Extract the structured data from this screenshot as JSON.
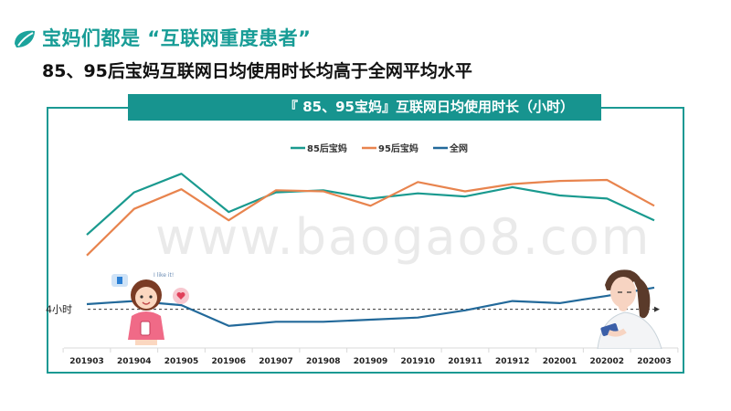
{
  "header": {
    "title": "宝妈们都是 “互联网重度患者”",
    "subtitle": "85、95后宝妈互联网日均使用时长均高于全网平均水平"
  },
  "watermark": "www.baogao8.com",
  "colors": {
    "brand": "#179c96",
    "title_bar": "#17948f"
  },
  "chart_data": {
    "type": "line",
    "title": "『 85、95宝妈』互联网日均使用时长（小时）",
    "categories": [
      "201903",
      "201904",
      "201905",
      "201906",
      "201907",
      "201908",
      "201909",
      "201910",
      "201911",
      "201912",
      "202001",
      "202002",
      "202003"
    ],
    "series": [
      {
        "name": "85后宝妈",
        "color": "#1a9a8f",
        "values": [
          4.72,
          5.13,
          5.31,
          4.94,
          5.13,
          5.15,
          5.07,
          5.12,
          5.09,
          5.18,
          5.1,
          5.07,
          4.86
        ]
      },
      {
        "name": "95后宝妈",
        "color": "#e8844e",
        "values": [
          4.52,
          4.97,
          5.16,
          4.86,
          5.15,
          5.14,
          5.0,
          5.23,
          5.14,
          5.21,
          5.24,
          5.25,
          5.0
        ]
      },
      {
        "name": "全网",
        "color": "#22699a",
        "values": [
          4.05,
          4.08,
          4.04,
          3.84,
          3.88,
          3.88,
          3.9,
          3.92,
          3.99,
          4.08,
          4.06,
          4.13,
          4.21
        ]
      }
    ],
    "reference": {
      "label": "4小时",
      "value": 4
    },
    "ylim": [
      3,
      6
    ],
    "grid": false,
    "legend_position": "top-center"
  }
}
